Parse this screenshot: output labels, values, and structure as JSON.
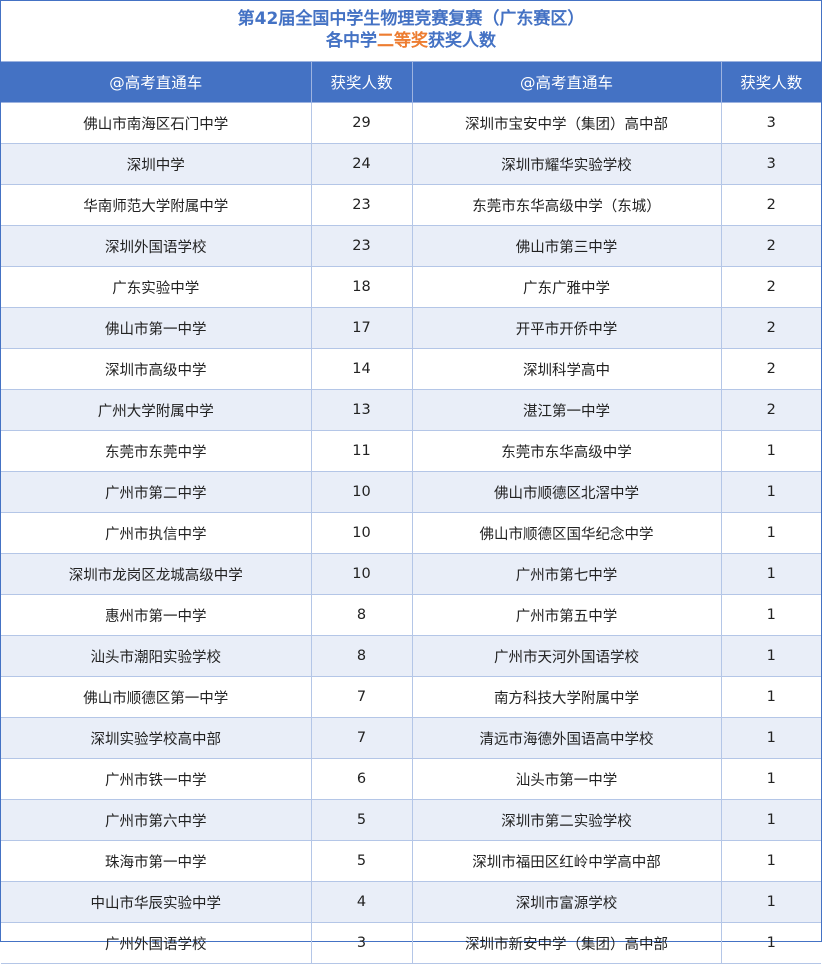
{
  "title": {
    "line1": "第42届全国中学生物理竞赛复赛（广东赛区）",
    "line2_prefix": "各中学",
    "line2_highlight": "二等奖",
    "line2_suffix": "获奖人数",
    "highlight_color": "#ED7D31",
    "title_color": "#4472C4"
  },
  "header": {
    "school_col_left": "@高考直通车",
    "count_col_left": "获奖人数",
    "school_col_right": "@高考直通车",
    "count_col_right": "获奖人数",
    "header_bg": "#4472C4"
  },
  "rows": [
    {
      "left_school": "佛山市南海区石门中学",
      "left_count": "29",
      "right_school": "深圳市宝安中学（集团）高中部",
      "right_count": "3"
    },
    {
      "left_school": "深圳中学",
      "left_count": "24",
      "right_school": "深圳市耀华实验学校",
      "right_count": "3"
    },
    {
      "left_school": "华南师范大学附属中学",
      "left_count": "23",
      "right_school": "东莞市东华高级中学（东城）",
      "right_count": "2"
    },
    {
      "left_school": "深圳外国语学校",
      "left_count": "23",
      "right_school": "佛山市第三中学",
      "right_count": "2"
    },
    {
      "left_school": "广东实验中学",
      "left_count": "18",
      "right_school": "广东广雅中学",
      "right_count": "2"
    },
    {
      "left_school": "佛山市第一中学",
      "left_count": "17",
      "right_school": "开平市开侨中学",
      "right_count": "2"
    },
    {
      "left_school": "深圳市高级中学",
      "left_count": "14",
      "right_school": "深圳科学高中",
      "right_count": "2"
    },
    {
      "left_school": "广州大学附属中学",
      "left_count": "13",
      "right_school": "湛江第一中学",
      "right_count": "2"
    },
    {
      "left_school": "东莞市东莞中学",
      "left_count": "11",
      "right_school": "东莞市东华高级中学",
      "right_count": "1"
    },
    {
      "left_school": "广州市第二中学",
      "left_count": "10",
      "right_school": "佛山市顺德区北滘中学",
      "right_count": "1"
    },
    {
      "left_school": "广州市执信中学",
      "left_count": "10",
      "right_school": "佛山市顺德区国华纪念中学",
      "right_count": "1"
    },
    {
      "left_school": "深圳市龙岗区龙城高级中学",
      "left_count": "10",
      "right_school": "广州市第七中学",
      "right_count": "1"
    },
    {
      "left_school": "惠州市第一中学",
      "left_count": "8",
      "right_school": "广州市第五中学",
      "right_count": "1"
    },
    {
      "left_school": "汕头市潮阳实验学校",
      "left_count": "8",
      "right_school": "广州市天河外国语学校",
      "right_count": "1"
    },
    {
      "left_school": "佛山市顺德区第一中学",
      "left_count": "7",
      "right_school": "南方科技大学附属中学",
      "right_count": "1"
    },
    {
      "left_school": "深圳实验学校高中部",
      "left_count": "7",
      "right_school": "清远市海德外国语高中学校",
      "right_count": "1"
    },
    {
      "left_school": "广州市铁一中学",
      "left_count": "6",
      "right_school": "汕头市第一中学",
      "right_count": "1"
    },
    {
      "left_school": "广州市第六中学",
      "left_count": "5",
      "right_school": "深圳市第二实验学校",
      "right_count": "1"
    },
    {
      "left_school": "珠海市第一中学",
      "left_count": "5",
      "right_school": "深圳市福田区红岭中学高中部",
      "right_count": "1"
    },
    {
      "left_school": "中山市华辰实验中学",
      "left_count": "4",
      "right_school": "深圳市富源学校",
      "right_count": "1"
    },
    {
      "left_school": "广州外国语学校",
      "left_count": "3",
      "right_school": "深圳市新安中学（集团）高中部",
      "right_count": "1"
    }
  ]
}
